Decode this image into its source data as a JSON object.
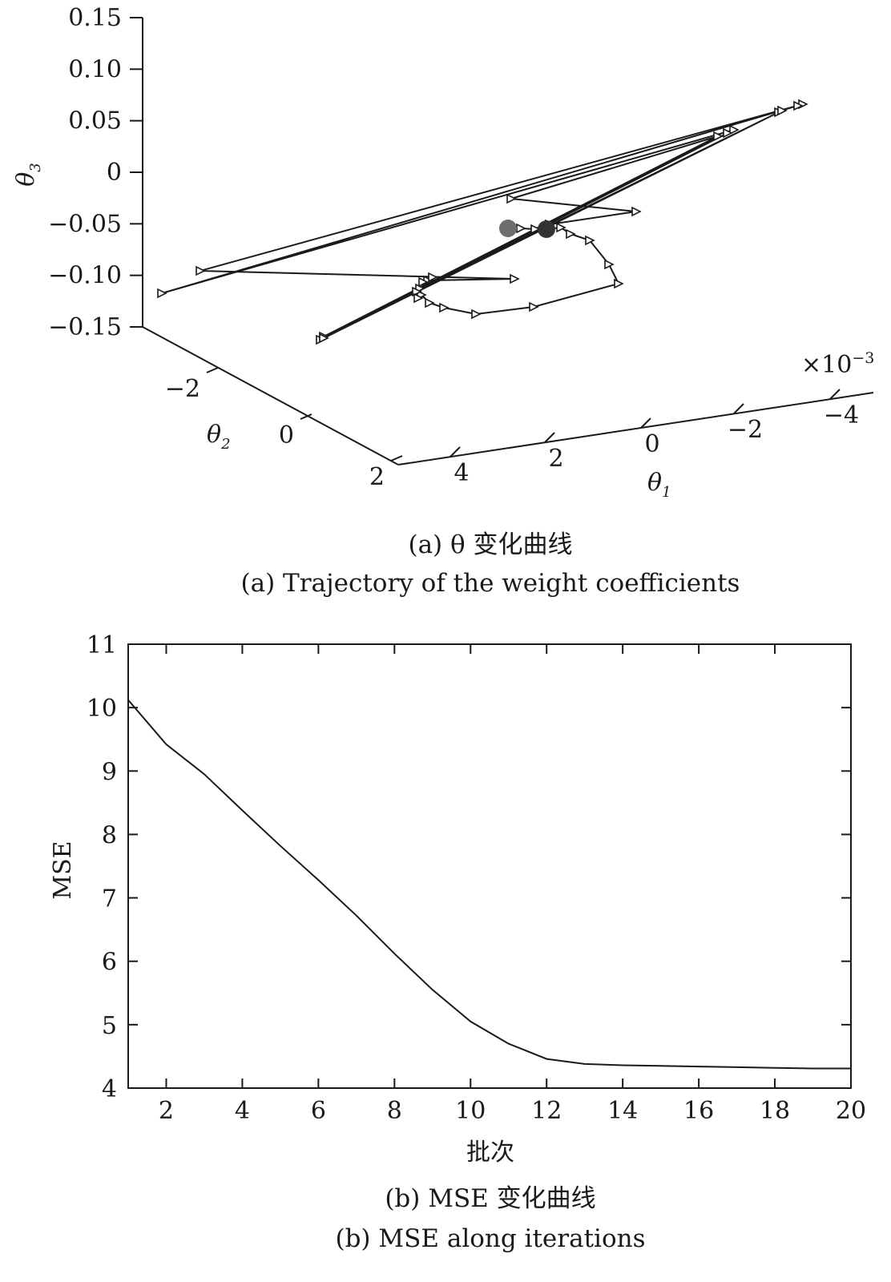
{
  "chart_data": [
    {
      "type": "line",
      "subtype": "3d-trajectory",
      "x_axis": {
        "label": "θ",
        "label_subscript": "1",
        "ticks": [
          "4",
          "2",
          "0",
          "−2",
          "−4"
        ],
        "multiplier": "×10",
        "multiplier_exp": "−3"
      },
      "y_axis": {
        "label": "θ",
        "label_subscript": "2",
        "ticks": [
          "−2",
          "0",
          "2"
        ]
      },
      "z_axis": {
        "label": "θ",
        "label_subscript": "3",
        "ticks": [
          "0.15",
          "0.10",
          "0.05",
          "0",
          "−0.05",
          "−0.10",
          "−0.15"
        ],
        "zlim": [
          -0.15,
          0.15
        ]
      },
      "marker": "triangle-right",
      "start_marker_color": "#6e6e6e",
      "end_marker_color": "#333333",
      "caption_cn": "(a) θ 变化曲线",
      "caption_en": "(a) Trajectory of the weight coefficients"
    },
    {
      "type": "line",
      "x": [
        1,
        2,
        3,
        4,
        5,
        6,
        7,
        8,
        9,
        10,
        11,
        12,
        13,
        14,
        15,
        16,
        17,
        18,
        19,
        20
      ],
      "series": [
        {
          "values": [
            10.12,
            9.42,
            8.95,
            8.38,
            7.82,
            7.28,
            6.72,
            6.12,
            5.55,
            5.05,
            4.7,
            4.46,
            4.38,
            4.36,
            4.35,
            4.34,
            4.33,
            4.32,
            4.31,
            4.31
          ]
        }
      ],
      "xlim": [
        1,
        20
      ],
      "ylim": [
        4,
        11
      ],
      "xticks": [
        "2",
        "4",
        "6",
        "8",
        "10",
        "12",
        "14",
        "16",
        "18",
        "20"
      ],
      "yticks": [
        "4",
        "5",
        "6",
        "7",
        "8",
        "9",
        "10",
        "11"
      ],
      "xlabel": "批次",
      "ylabel": "MSE",
      "grid": false,
      "caption_cn": "(b) MSE 变化曲线",
      "caption_en": "(b) MSE along iterations"
    }
  ]
}
